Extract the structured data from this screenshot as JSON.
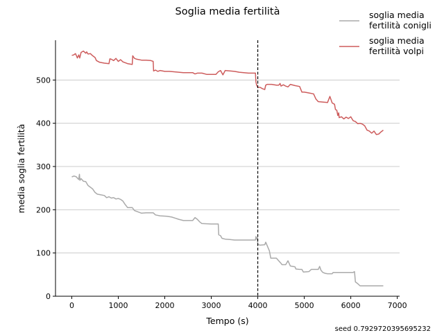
{
  "chart_data": {
    "type": "line",
    "title": "Soglia media fertilità",
    "xlabel": "Tempo (s)",
    "ylabel": "media soglia fertilità",
    "xlim": [
      -350,
      7050
    ],
    "ylim": [
      0,
      592
    ],
    "xticks": [
      0,
      1000,
      2000,
      3000,
      4000,
      5000,
      6000,
      7000
    ],
    "yticks": [
      0,
      100,
      200,
      300,
      400,
      500
    ],
    "grid": "horizontal",
    "legend_position": "top-right",
    "vline": 4000,
    "footnote": "seed 0.7929720395695232",
    "series": [
      {
        "name": "soglia media\nfertilità conigli",
        "color": "#aaaaaa",
        "points": [
          [
            0,
            276
          ],
          [
            50,
            278
          ],
          [
            100,
            276
          ],
          [
            130,
            272
          ],
          [
            150,
            270
          ],
          [
            165,
            282
          ],
          [
            175,
            268
          ],
          [
            200,
            272
          ],
          [
            250,
            266
          ],
          [
            300,
            265
          ],
          [
            350,
            256
          ],
          [
            400,
            252
          ],
          [
            450,
            248
          ],
          [
            500,
            240
          ],
          [
            550,
            236
          ],
          [
            600,
            235
          ],
          [
            700,
            233
          ],
          [
            750,
            228
          ],
          [
            800,
            230
          ],
          [
            850,
            227
          ],
          [
            900,
            228
          ],
          [
            950,
            225
          ],
          [
            1000,
            226
          ],
          [
            1050,
            224
          ],
          [
            1100,
            220
          ],
          [
            1150,
            212
          ],
          [
            1200,
            205
          ],
          [
            1300,
            205
          ],
          [
            1350,
            198
          ],
          [
            1400,
            196
          ],
          [
            1500,
            192
          ],
          [
            1600,
            193
          ],
          [
            1750,
            193
          ],
          [
            1800,
            188
          ],
          [
            1900,
            186
          ],
          [
            2050,
            185
          ],
          [
            2150,
            183
          ],
          [
            2300,
            178
          ],
          [
            2400,
            175
          ],
          [
            2600,
            175
          ],
          [
            2650,
            182
          ],
          [
            2700,
            178
          ],
          [
            2750,
            172
          ],
          [
            2800,
            168
          ],
          [
            3000,
            167
          ],
          [
            3150,
            167
          ],
          [
            3160,
            142
          ],
          [
            3200,
            140
          ],
          [
            3230,
            134
          ],
          [
            3300,
            132
          ],
          [
            3400,
            131
          ],
          [
            3500,
            130
          ],
          [
            3600,
            130
          ],
          [
            3900,
            130
          ],
          [
            3950,
            130
          ],
          [
            3960,
            138
          ],
          [
            3975,
            132
          ],
          [
            3990,
            136
          ],
          [
            4000,
            120
          ],
          [
            4050,
            118
          ],
          [
            4150,
            119
          ],
          [
            4170,
            125
          ],
          [
            4250,
            105
          ],
          [
            4280,
            88
          ],
          [
            4400,
            88
          ],
          [
            4450,
            82
          ],
          [
            4500,
            76
          ],
          [
            4520,
            73
          ],
          [
            4600,
            73
          ],
          [
            4650,
            82
          ],
          [
            4700,
            70
          ],
          [
            4800,
            68
          ],
          [
            4820,
            63
          ],
          [
            4900,
            62
          ],
          [
            4950,
            62
          ],
          [
            4980,
            56
          ],
          [
            5100,
            57
          ],
          [
            5150,
            62
          ],
          [
            5300,
            62
          ],
          [
            5330,
            69
          ],
          [
            5360,
            60
          ],
          [
            5400,
            55
          ],
          [
            5450,
            53
          ],
          [
            5500,
            52
          ],
          [
            5600,
            52
          ],
          [
            5620,
            55
          ],
          [
            5700,
            55
          ],
          [
            6050,
            55
          ],
          [
            6080,
            57
          ],
          [
            6100,
            33
          ],
          [
            6150,
            29
          ],
          [
            6200,
            24
          ],
          [
            6700,
            24
          ]
        ]
      },
      {
        "name": "soglia media\nfertilità volpi",
        "color": "#cd5c5c",
        "points": [
          [
            0,
            557
          ],
          [
            40,
            558
          ],
          [
            80,
            561
          ],
          [
            100,
            556
          ],
          [
            120,
            551
          ],
          [
            150,
            558
          ],
          [
            170,
            551
          ],
          [
            200,
            564
          ],
          [
            250,
            567
          ],
          [
            300,
            562
          ],
          [
            320,
            565
          ],
          [
            350,
            560
          ],
          [
            400,
            561
          ],
          [
            450,
            556
          ],
          [
            500,
            552
          ],
          [
            530,
            545
          ],
          [
            600,
            541
          ],
          [
            700,
            539
          ],
          [
            800,
            538
          ],
          [
            820,
            549
          ],
          [
            850,
            548
          ],
          [
            900,
            545
          ],
          [
            950,
            550
          ],
          [
            1000,
            543
          ],
          [
            1050,
            547
          ],
          [
            1100,
            542
          ],
          [
            1200,
            538
          ],
          [
            1300,
            536
          ],
          [
            1310,
            556
          ],
          [
            1350,
            550
          ],
          [
            1400,
            548
          ],
          [
            1500,
            546
          ],
          [
            1600,
            546
          ],
          [
            1700,
            545
          ],
          [
            1750,
            543
          ],
          [
            1760,
            521
          ],
          [
            1800,
            523
          ],
          [
            1850,
            520
          ],
          [
            1900,
            522
          ],
          [
            2000,
            520
          ],
          [
            2100,
            520
          ],
          [
            2300,
            518
          ],
          [
            2400,
            517
          ],
          [
            2600,
            517
          ],
          [
            2650,
            514
          ],
          [
            2700,
            516
          ],
          [
            2800,
            516
          ],
          [
            2900,
            513
          ],
          [
            3000,
            513
          ],
          [
            3100,
            513
          ],
          [
            3150,
            519
          ],
          [
            3200,
            522
          ],
          [
            3250,
            512
          ],
          [
            3300,
            522
          ],
          [
            3400,
            521
          ],
          [
            3500,
            520
          ],
          [
            3600,
            518
          ],
          [
            3700,
            517
          ],
          [
            3800,
            516
          ],
          [
            3950,
            516
          ],
          [
            3960,
            496
          ],
          [
            3975,
            488
          ],
          [
            4000,
            483
          ],
          [
            4050,
            483
          ],
          [
            4100,
            480
          ],
          [
            4150,
            478
          ],
          [
            4170,
            488
          ],
          [
            4200,
            490
          ],
          [
            4300,
            490
          ],
          [
            4400,
            488
          ],
          [
            4450,
            488
          ],
          [
            4480,
            492
          ],
          [
            4500,
            486
          ],
          [
            4550,
            489
          ],
          [
            4600,
            486
          ],
          [
            4650,
            484
          ],
          [
            4700,
            490
          ],
          [
            4800,
            487
          ],
          [
            4900,
            485
          ],
          [
            4950,
            472
          ],
          [
            5000,
            472
          ],
          [
            5100,
            470
          ],
          [
            5200,
            468
          ],
          [
            5250,
            456
          ],
          [
            5300,
            450
          ],
          [
            5400,
            449
          ],
          [
            5500,
            448
          ],
          [
            5550,
            462
          ],
          [
            5600,
            447
          ],
          [
            5650,
            444
          ],
          [
            5670,
            432
          ],
          [
            5700,
            430
          ],
          [
            5720,
            418
          ],
          [
            5740,
            424
          ],
          [
            5750,
            413
          ],
          [
            5800,
            415
          ],
          [
            5850,
            410
          ],
          [
            5900,
            414
          ],
          [
            5950,
            411
          ],
          [
            6000,
            415
          ],
          [
            6050,
            406
          ],
          [
            6100,
            404
          ],
          [
            6150,
            399
          ],
          [
            6200,
            400
          ],
          [
            6250,
            398
          ],
          [
            6300,
            394
          ],
          [
            6350,
            384
          ],
          [
            6400,
            382
          ],
          [
            6450,
            377
          ],
          [
            6500,
            382
          ],
          [
            6550,
            374
          ],
          [
            6600,
            375
          ],
          [
            6650,
            380
          ],
          [
            6700,
            384
          ]
        ]
      }
    ]
  }
}
